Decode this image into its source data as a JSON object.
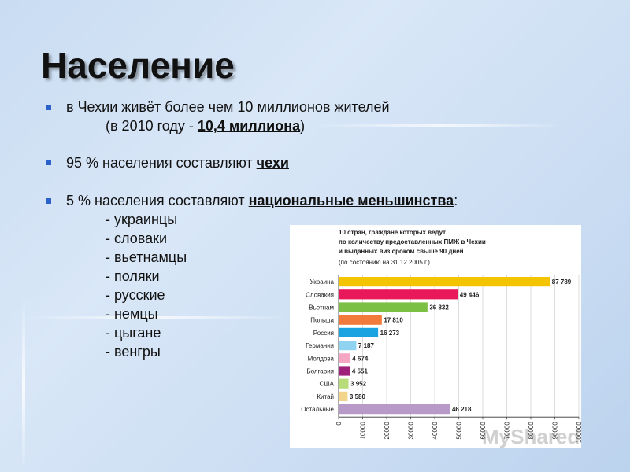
{
  "slide": {
    "title": "Население",
    "bullet1_line1": "в Чехии живёт более чем 10 миллионов  жителей",
    "bullet1_line2_pre": "(в 2010 году - ",
    "bullet1_line2_bold": "10,4 миллиона",
    "bullet1_line2_post": ")",
    "bullet2_pre": "95 % населения составляют ",
    "bullet2_bold": "чехи",
    "bullet3_pre": "5 % населения составляют ",
    "bullet3_bold": "национальные меньшинства",
    "bullet3_post": ":",
    "minorities": [
      "- украинцы",
      "- словаки",
      "- вьетнамцы",
      "- поляки",
      "- русские",
      "- немцы",
      "- цыгане",
      "- венгры"
    ]
  },
  "chart_data": {
    "type": "bar",
    "orientation": "horizontal",
    "title_lines": [
      "10 стран, граждане которых ведут",
      "по количеству предоставленных ПМЖ в Чехии",
      "и выданных виз сроком свыше 90 дней"
    ],
    "subtitle": "(по состоянию на 31.12.2005 г.)",
    "categories": [
      "Украина",
      "Словакия",
      "Вьетнам",
      "Польша",
      "Россия",
      "Германия",
      "Молдова",
      "Болгария",
      "США",
      "Китай",
      "Остальные"
    ],
    "values": [
      87789,
      49446,
      36832,
      17810,
      16273,
      7187,
      4674,
      4551,
      3952,
      3580,
      46218
    ],
    "value_labels": [
      "87 789",
      "49 446",
      "36 832",
      "17 810",
      "16 273",
      "7 187",
      "4 674",
      "4 551",
      "3 952",
      "3 580",
      "46 218"
    ],
    "colors": [
      "#f5c400",
      "#e8185a",
      "#7bc043",
      "#f27a3a",
      "#1aa3e0",
      "#8fd3f0",
      "#f5a6c2",
      "#a0217a",
      "#b9dc7a",
      "#f2d58a",
      "#b79ac8"
    ],
    "xlim": [
      0,
      100000
    ],
    "x_ticks": [
      0,
      10000,
      20000,
      30000,
      40000,
      50000,
      60000,
      70000,
      80000,
      90000,
      100000
    ],
    "grid": true
  },
  "watermark": "MyShared"
}
